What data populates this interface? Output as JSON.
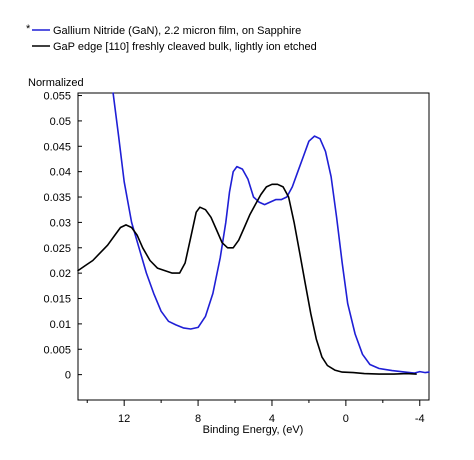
{
  "chart_data": {
    "type": "line",
    "ylabel": "Normalized",
    "xlabel": "Binding Energy, (eV)",
    "xlim": [
      14.5,
      -4.5
    ],
    "x_reversed": true,
    "ylim": [
      -0.005,
      0.0555
    ],
    "x_ticks": [
      12,
      8,
      4,
      0,
      -4
    ],
    "x_tick_labels": [
      "12",
      "8",
      "4",
      "0",
      "-4"
    ],
    "x_minor_ticks": [
      14,
      10,
      6,
      2,
      -2
    ],
    "y_ticks": [
      0,
      0.005,
      0.01,
      0.015,
      0.02,
      0.025,
      0.03,
      0.035,
      0.04,
      0.045,
      0.05,
      0.055
    ],
    "y_tick_labels": [
      "0",
      "0.005",
      "0.01",
      "0.015",
      "0.02",
      "0.025",
      "0.03",
      "0.035",
      "0.04",
      "0.045",
      "0.05",
      "0.055"
    ],
    "grid": false,
    "legend_position": "top-left",
    "series": [
      {
        "name": "Gallium Nitride (GaN), 2.2 micron film, on Sapphire",
        "color": "#1f1fd6",
        "legend_marker": "*",
        "points": [
          [
            12.6,
            0.0555
          ],
          [
            12.3,
            0.047
          ],
          [
            12.0,
            0.038
          ],
          [
            11.6,
            0.03
          ],
          [
            11.2,
            0.025
          ],
          [
            10.8,
            0.02
          ],
          [
            10.4,
            0.016
          ],
          [
            10.0,
            0.0125
          ],
          [
            9.6,
            0.0105
          ],
          [
            9.2,
            0.0098
          ],
          [
            8.8,
            0.0092
          ],
          [
            8.4,
            0.009
          ],
          [
            8.0,
            0.0093
          ],
          [
            7.6,
            0.0115
          ],
          [
            7.2,
            0.016
          ],
          [
            6.8,
            0.023
          ],
          [
            6.5,
            0.03
          ],
          [
            6.3,
            0.036
          ],
          [
            6.1,
            0.04
          ],
          [
            5.9,
            0.041
          ],
          [
            5.6,
            0.0405
          ],
          [
            5.3,
            0.0385
          ],
          [
            5.0,
            0.035
          ],
          [
            4.7,
            0.034
          ],
          [
            4.4,
            0.0335
          ],
          [
            4.1,
            0.034
          ],
          [
            3.8,
            0.0345
          ],
          [
            3.5,
            0.0345
          ],
          [
            3.2,
            0.035
          ],
          [
            2.9,
            0.037
          ],
          [
            2.6,
            0.04
          ],
          [
            2.3,
            0.043
          ],
          [
            2.0,
            0.046
          ],
          [
            1.7,
            0.047
          ],
          [
            1.4,
            0.0465
          ],
          [
            1.1,
            0.044
          ],
          [
            0.8,
            0.039
          ],
          [
            0.5,
            0.031
          ],
          [
            0.2,
            0.022
          ],
          [
            -0.1,
            0.014
          ],
          [
            -0.5,
            0.008
          ],
          [
            -0.9,
            0.004
          ],
          [
            -1.3,
            0.002
          ],
          [
            -1.8,
            0.0012
          ],
          [
            -2.5,
            0.0008
          ],
          [
            -3.2,
            0.0005
          ],
          [
            -3.7,
            0.0003
          ],
          [
            -4.0,
            0.0006
          ],
          [
            -4.3,
            0.0004
          ],
          [
            -4.5,
            0.0005
          ]
        ]
      },
      {
        "name": "GaP edge [110] freshly cleaved bulk, lightly ion etched",
        "color": "#000000",
        "points": [
          [
            14.5,
            0.0205
          ],
          [
            14.1,
            0.0215
          ],
          [
            13.7,
            0.0225
          ],
          [
            13.3,
            0.024
          ],
          [
            12.9,
            0.0255
          ],
          [
            12.5,
            0.0275
          ],
          [
            12.2,
            0.029
          ],
          [
            11.9,
            0.0295
          ],
          [
            11.6,
            0.029
          ],
          [
            11.3,
            0.0275
          ],
          [
            11.0,
            0.025
          ],
          [
            10.6,
            0.0225
          ],
          [
            10.2,
            0.021
          ],
          [
            9.8,
            0.0205
          ],
          [
            9.4,
            0.02
          ],
          [
            9.0,
            0.02
          ],
          [
            8.7,
            0.022
          ],
          [
            8.4,
            0.027
          ],
          [
            8.1,
            0.032
          ],
          [
            7.9,
            0.033
          ],
          [
            7.6,
            0.0325
          ],
          [
            7.3,
            0.031
          ],
          [
            7.0,
            0.0285
          ],
          [
            6.7,
            0.026
          ],
          [
            6.4,
            0.025
          ],
          [
            6.1,
            0.025
          ],
          [
            5.8,
            0.0265
          ],
          [
            5.5,
            0.029
          ],
          [
            5.2,
            0.0315
          ],
          [
            4.9,
            0.0335
          ],
          [
            4.6,
            0.0355
          ],
          [
            4.3,
            0.037
          ],
          [
            4.0,
            0.0375
          ],
          [
            3.7,
            0.0375
          ],
          [
            3.4,
            0.037
          ],
          [
            3.1,
            0.035
          ],
          [
            2.8,
            0.03
          ],
          [
            2.5,
            0.024
          ],
          [
            2.2,
            0.018
          ],
          [
            1.9,
            0.012
          ],
          [
            1.6,
            0.007
          ],
          [
            1.3,
            0.0035
          ],
          [
            1.0,
            0.0018
          ],
          [
            0.6,
            0.0009
          ],
          [
            0.2,
            0.0005
          ],
          [
            -0.4,
            0.0004
          ],
          [
            -1.0,
            0.0002
          ],
          [
            -1.8,
            0.0001
          ],
          [
            -2.6,
            0.0001
          ],
          [
            -3.3,
            0.0002
          ],
          [
            -3.8,
            0.0001
          ]
        ]
      }
    ]
  }
}
